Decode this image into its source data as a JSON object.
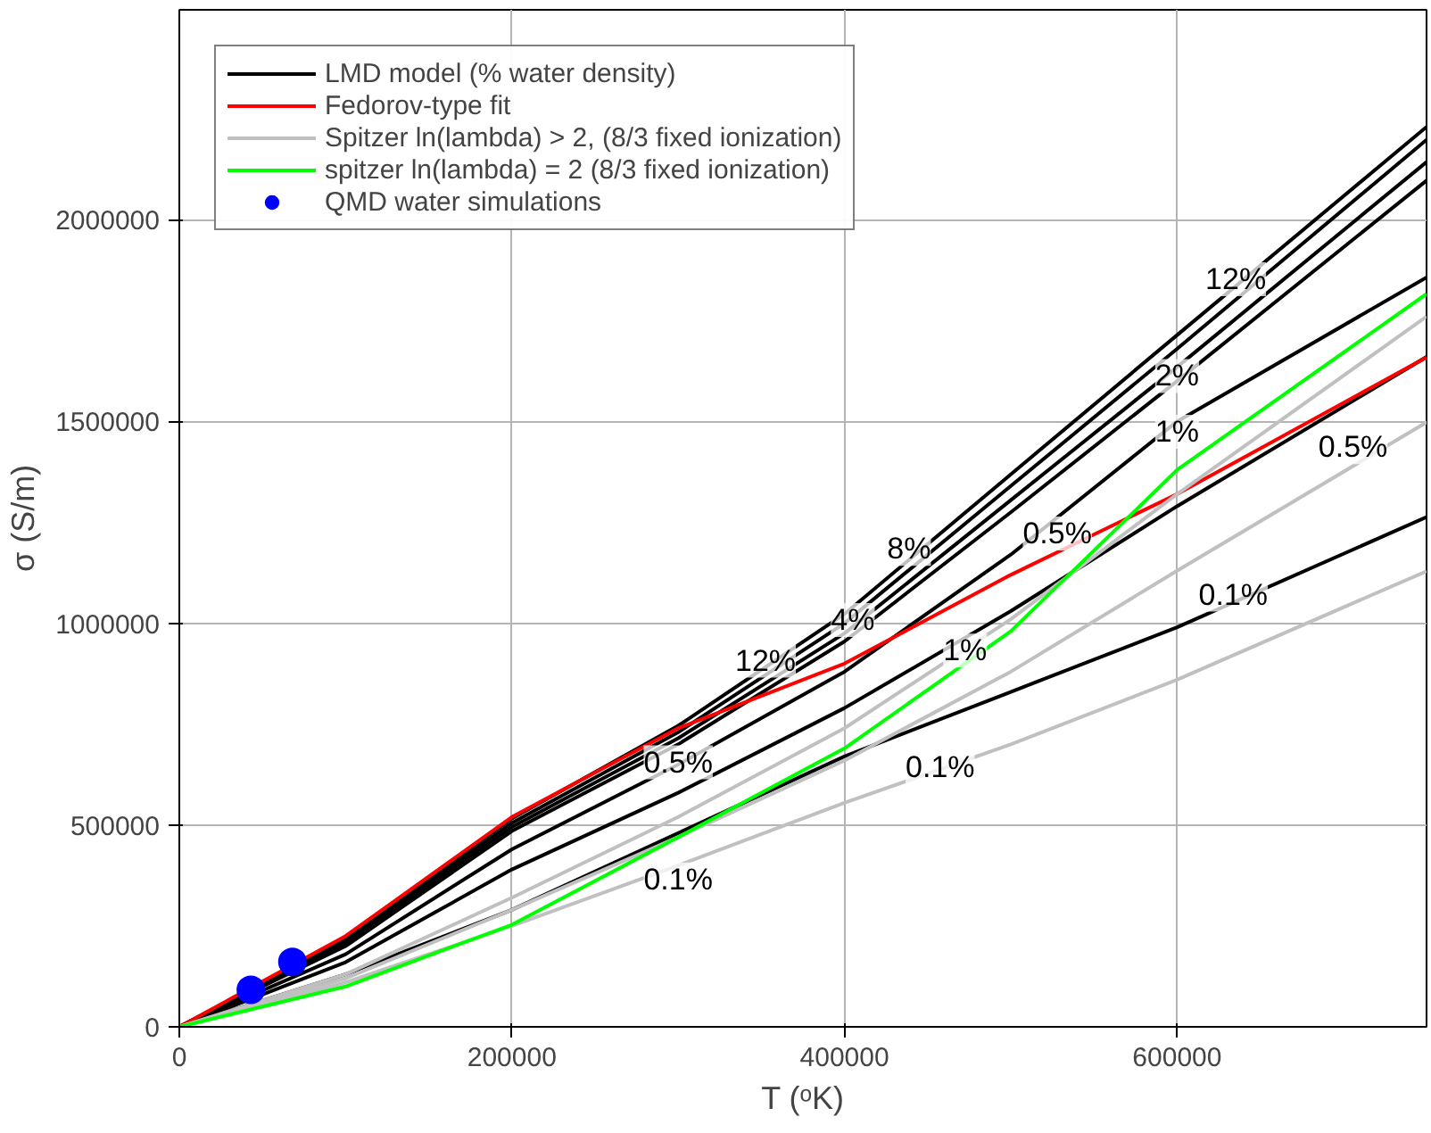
{
  "chart_data": {
    "type": "line",
    "xlabel": "T (ᵒK)",
    "ylabel": "σ (S/m)",
    "xlim": [
      0,
      750000
    ],
    "ylim": [
      0,
      2520000
    ],
    "xticks": [
      0,
      200000,
      400000,
      600000
    ],
    "yticks": [
      0,
      500000,
      1000000,
      1500000,
      2000000
    ],
    "grid": true,
    "legend": "top left",
    "line_style": "solid",
    "x": [
      0,
      100000,
      200000,
      300000,
      400000,
      500000,
      600000,
      750000
    ],
    "series": [
      {
        "name": "LMD model (% water density)",
        "color": "#000000",
        "values": [
          0,
          217000,
          516000,
          746000,
          1023000,
          1369000,
          1714000,
          2230000
        ]
      },
      {
        "color": "#000000",
        "values": [
          0,
          210000,
          505000,
          730000,
          1000000,
          1340000,
          1680000,
          2198000
        ]
      },
      {
        "color": "#000000",
        "values": [
          0,
          205000,
          495000,
          715000,
          975000,
          1305000,
          1635000,
          2143000
        ]
      },
      {
        "color": "#000000",
        "values": [
          0,
          200000,
          485000,
          700000,
          955000,
          1275000,
          1600000,
          2097000
        ]
      },
      {
        "color": "#000000",
        "values": [
          0,
          180000,
          440000,
          650000,
          880000,
          1170000,
          1500000,
          1857000
        ]
      },
      {
        "color": "#000000",
        "values": [
          0,
          160000,
          390000,
          580000,
          790000,
          1030000,
          1290000,
          1660000
        ]
      },
      {
        "color": "#000000",
        "values": [
          0,
          130000,
          290000,
          480000,
          670000,
          830000,
          990000,
          1263000
        ]
      },
      {
        "name": "Fedorov-type fit",
        "color": "#ff0000",
        "values": [
          0,
          225000,
          520000,
          740000,
          900000,
          1120000,
          1320000,
          1659000
        ]
      },
      {
        "name": "Spitzer ln(lambda) > 2, (8/3 fixed ionization)",
        "color": "#c0c0c0",
        "values": [
          0,
          130000,
          320000,
          520000,
          740000,
          1010000,
          1320000,
          1760000
        ]
      },
      {
        "color": "#c0c0c0",
        "values": [
          0,
          120000,
          290000,
          470000,
          660000,
          880000,
          1130000,
          1498000
        ]
      },
      {
        "color": "#c0c0c0",
        "values": [
          0,
          110000,
          250000,
          400000,
          555000,
          700000,
          860000,
          1129000
        ]
      },
      {
        "name": "spitzer ln(lambda) = 2 (8/3 fixed ionization)",
        "color": "#00ff00",
        "values": [
          0,
          100000,
          253000,
          470000,
          690000,
          980000,
          1380000,
          1816000
        ]
      },
      {
        "name": "QMD water simulations",
        "type": "scatter",
        "marker": "circle",
        "color": "#0000ff",
        "x": [
          43000,
          68000
        ],
        "values": [
          92000,
          161000
        ]
      }
    ],
    "annotations": [
      "12%",
      "2%",
      "1%",
      "0.1%",
      "8%",
      "4%",
      "12%",
      "0.5%",
      "0.1%",
      "0.5%",
      "0.5%",
      "0.1%",
      "1%"
    ]
  }
}
